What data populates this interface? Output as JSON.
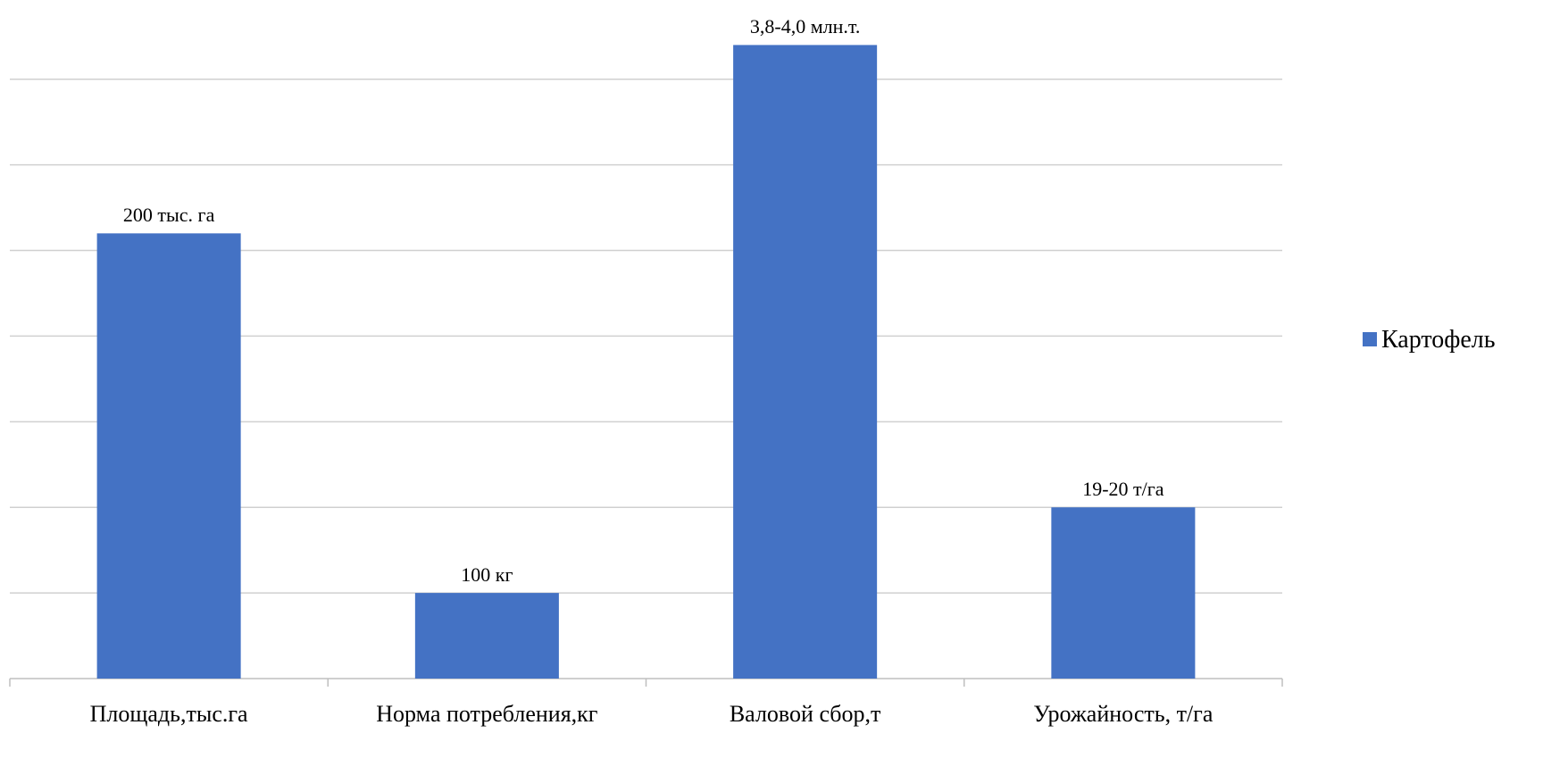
{
  "chart_data": {
    "type": "bar",
    "categories": [
      "Площадь,тыс.га",
      "Норма потребления,кг",
      "Валовой сбор,т",
      "Урожайность, т/га"
    ],
    "series": [
      {
        "name": "Картофель",
        "color": "#4472c4",
        "values": [
          5.2,
          1,
          7.4,
          2
        ]
      }
    ],
    "annotations": [
      "200 тыс. га",
      "100 кг",
      "3,8-4,0 млн.т.",
      "19-20 т/га"
    ],
    "ylim": [
      0,
      7.4
    ],
    "yticks": [
      0,
      1,
      2,
      3,
      4,
      5,
      6,
      7
    ],
    "grid": true,
    "legend": "right"
  }
}
